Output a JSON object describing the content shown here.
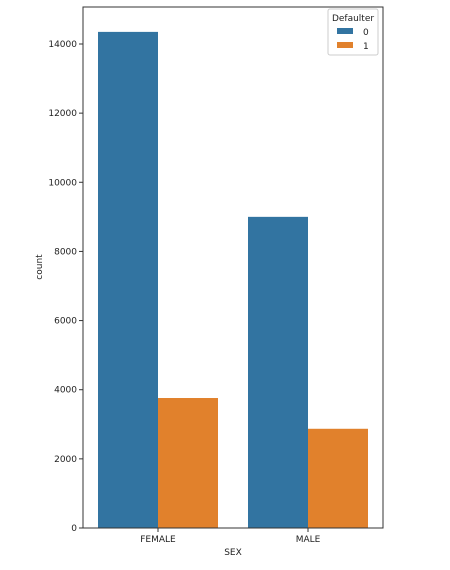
{
  "chart_data": {
    "type": "bar",
    "categories": [
      "FEMALE",
      "MALE"
    ],
    "series": [
      {
        "name": "0",
        "values": [
          14350,
          9000
        ],
        "color": "#3274a1"
      },
      {
        "name": "1",
        "values": [
          3760,
          2870
        ],
        "color": "#e1812c"
      }
    ],
    "xlabel": "SEX",
    "ylabel": "count",
    "ylim": [
      0,
      15070
    ],
    "yticks": [
      0,
      2000,
      4000,
      6000,
      8000,
      10000,
      12000,
      14000
    ],
    "legend": {
      "title": "Defaulter",
      "placement": "top-right"
    },
    "grid": false
  }
}
